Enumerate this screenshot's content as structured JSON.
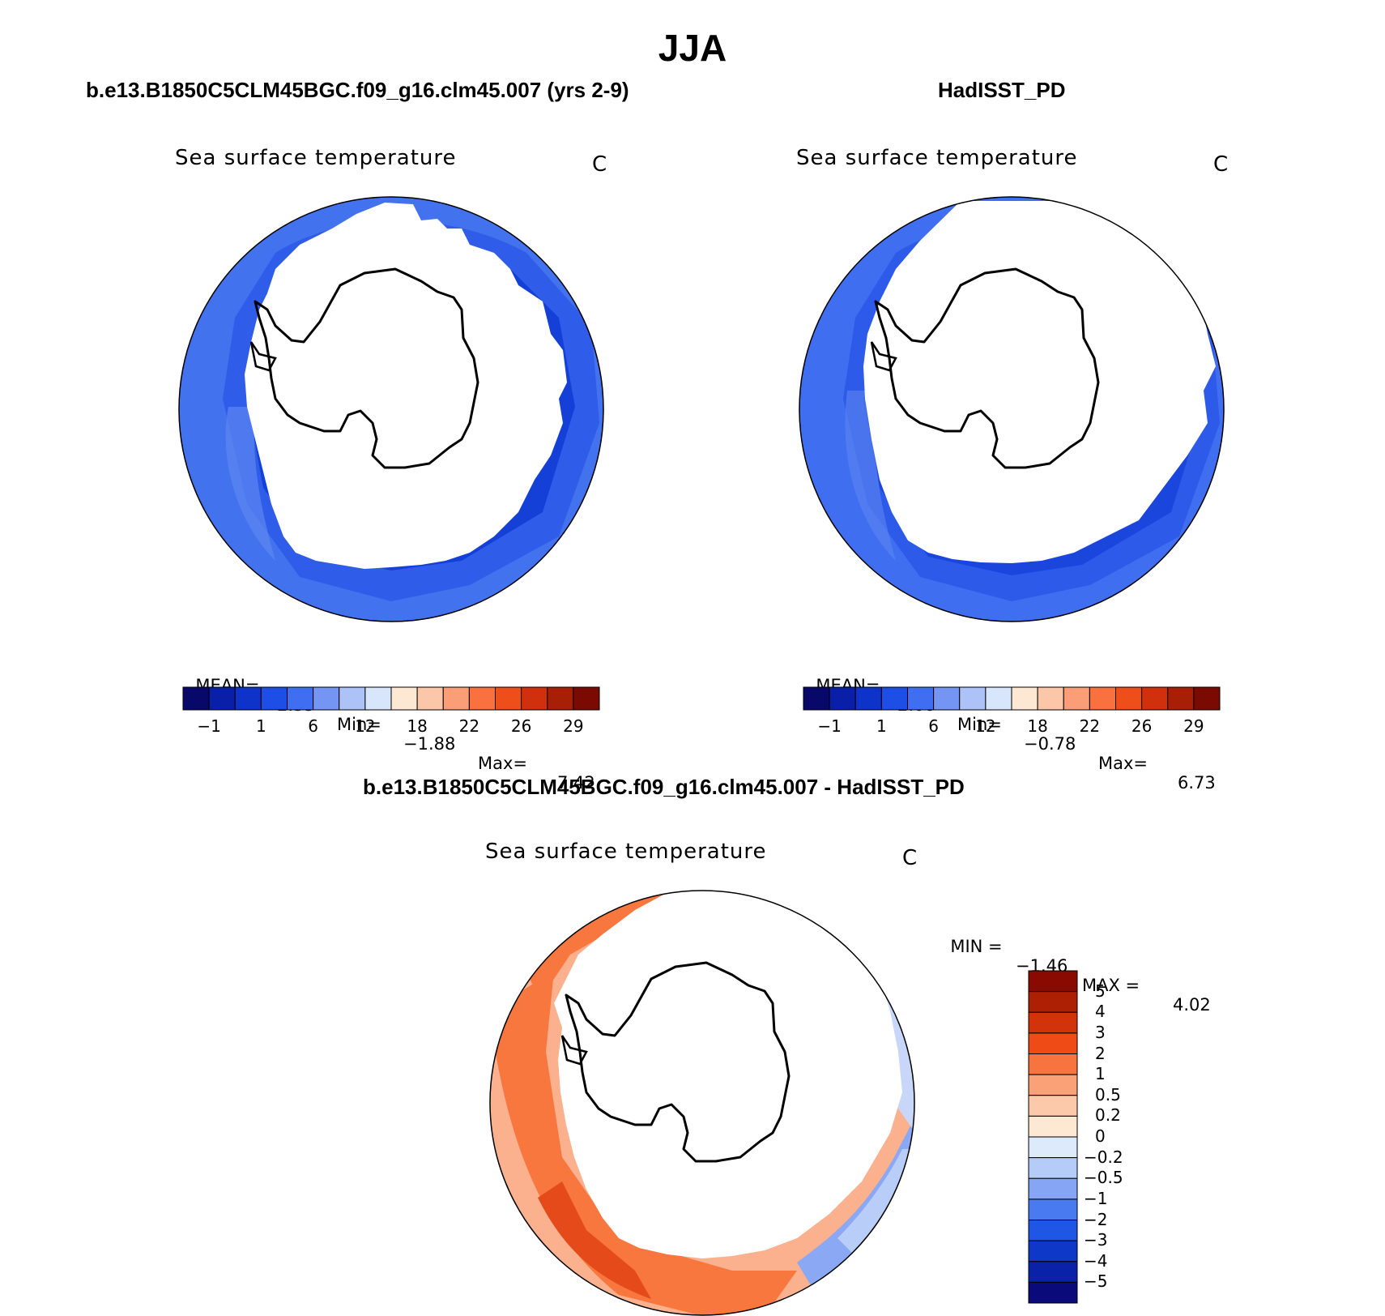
{
  "page": {
    "title": "JJA",
    "subtitle_left": "b.e13.B1850C5CLM45BGC.f09_g16.clm45.007 (yrs 2-9)",
    "subtitle_right": "HadISST_PD",
    "subtitle_diff": "b.e13.B1850C5CLM45BGC.f09_g16.clm45.007 - HadISST_PD"
  },
  "panels": {
    "model": {
      "variable": "Sea surface temperature",
      "units": "C",
      "mean_label": "MEAN=",
      "mean_value": "2.35",
      "min_label": "Min=",
      "min_value": "−1.88",
      "max_label": "Max=",
      "max_value": "7.42"
    },
    "obs": {
      "variable": "Sea surface temperature",
      "units": "C",
      "mean_label": "MEAN=",
      "mean_value": "2.08",
      "min_label": "Min=",
      "min_value": "−0.78",
      "max_label": "Max=",
      "max_value": "6.73"
    },
    "diff": {
      "variable": "Sea surface temperature",
      "units": "C",
      "min_label": "MIN =",
      "min_value": "−1.46",
      "max_label": "MAX =",
      "max_value": "4.02"
    }
  },
  "colorbar_abs": {
    "colors": [
      "#08086b",
      "#0a1fa8",
      "#0d33c9",
      "#1d4ee6",
      "#3f6ff0",
      "#7595f4",
      "#adc3f8",
      "#d8e6fb",
      "#fde8d4",
      "#fcc7a8",
      "#fb9e78",
      "#f8713f",
      "#ee4e19",
      "#d0300b",
      "#a71f05",
      "#7b0a02"
    ],
    "ticks": [
      "−1",
      "1",
      "6",
      "12",
      "18",
      "22",
      "26",
      "29"
    ]
  },
  "colorbar_diff": {
    "colors": [
      "#0a0a7a",
      "#0a22a8",
      "#0d38c8",
      "#1f56e6",
      "#4a7af0",
      "#86a5f4",
      "#b5cbf8",
      "#dceafc",
      "#fde8d4",
      "#fcc9ab",
      "#fba178",
      "#f8743f",
      "#ef4b16",
      "#d3330a",
      "#ad2004",
      "#8a0a02"
    ],
    "ticks": [
      "5",
      "4",
      "3",
      "2",
      "1",
      "0.5",
      "0.2",
      "0",
      "−0.2",
      "−0.5",
      "−1",
      "−2",
      "−3",
      "−4",
      "−5"
    ]
  }
}
